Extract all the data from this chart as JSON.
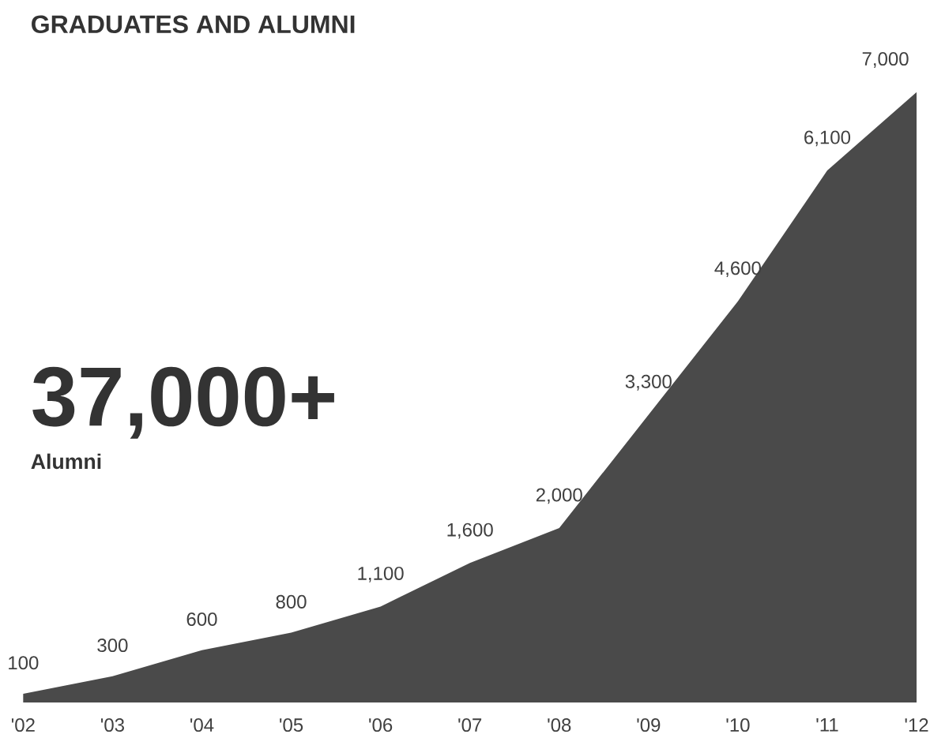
{
  "chart_data": {
    "type": "area",
    "title": "GRADUATES AND ALUMNI",
    "categories": [
      "'02",
      "'03",
      "'04",
      "'05",
      "'06",
      "'07",
      "'08",
      "'09",
      "'10",
      "'11",
      "'12"
    ],
    "values": [
      100,
      300,
      600,
      800,
      1100,
      1600,
      2000,
      3300,
      4600,
      6100,
      7000
    ],
    "value_labels": [
      "100",
      "300",
      "600",
      "800",
      "1,100",
      "1,600",
      "2,000",
      "3,300",
      "4,600",
      "6,100",
      "7,000"
    ],
    "color": "#4a4a4a",
    "annotations": [
      "37,000+",
      "Alumni"
    ]
  }
}
